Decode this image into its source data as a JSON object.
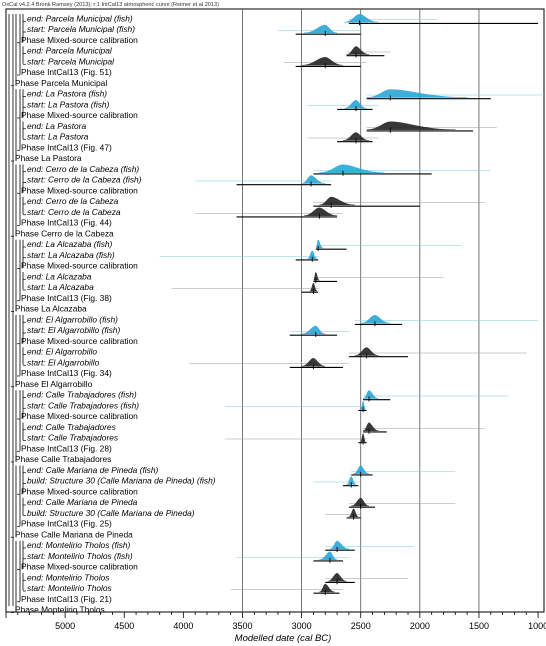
{
  "chart_data": {
    "type": "oxcal-multiplot",
    "header": "OxCal v4.2.4 Bronk Ramsey (2013); r:1 IntCal13 atmospheric curve (Reimer et al 2013)",
    "xlabel": "Modelled date (cal BC)",
    "xlim": [
      5500,
      950
    ],
    "xticks": [
      5000,
      4500,
      4000,
      3500,
      3000,
      2500,
      2000,
      1500,
      1000
    ],
    "grid_lines": [
      3500,
      3000,
      2500,
      2000,
      1500
    ],
    "colors": {
      "fish": "#2aa6d6",
      "terrestrial": "#222222",
      "frame": "#000000"
    },
    "rows": [
      {
        "label": "end: Parcela Municipal (fish)",
        "kind": "fish",
        "peak": 2510,
        "start": 2640,
        "end": 2350,
        "range": [
          2600,
          1000
        ],
        "thin": [
          2600,
          1850
        ]
      },
      {
        "label": "start: Parcela Municipal (fish)",
        "kind": "fish",
        "peak": 2800,
        "start": 2980,
        "end": 2700,
        "range": [
          3050,
          2500
        ],
        "thin": [
          3200,
          2500
        ]
      },
      {
        "label": "Phase Mixed-source calibration",
        "kind": "phase"
      },
      {
        "label": "end: Parcela Municipal",
        "kind": "terr",
        "peak": 2540,
        "start": 2620,
        "end": 2430,
        "range": [
          2620,
          2300
        ],
        "thin": [
          2620,
          2250
        ]
      },
      {
        "label": "start: Parcela Municipal",
        "kind": "terr",
        "peak": 2800,
        "start": 3000,
        "end": 2650,
        "range": [
          3050,
          2500
        ],
        "thin": [
          3150,
          2450
        ]
      },
      {
        "label": "Phase IntCal13 (Fig. 51)",
        "kind": "phase"
      },
      {
        "label": "Phase Parcela Municipal",
        "kind": "phase"
      },
      {
        "label": "end: La Pastora (fish)",
        "kind": "fish",
        "peak": 2250,
        "start": 2450,
        "end": 1600,
        "range": [
          2450,
          1400
        ],
        "thin": [
          2450,
          950
        ]
      },
      {
        "label": "start: La Pastora (fish)",
        "kind": "fish",
        "peak": 2540,
        "start": 2640,
        "end": 2450,
        "range": [
          2700,
          2400
        ],
        "thin": [
          2950,
          2350
        ]
      },
      {
        "label": "Phase Mixed-source calibration",
        "kind": "phase"
      },
      {
        "label": "end: La Pastora",
        "kind": "terr",
        "peak": 2250,
        "start": 2450,
        "end": 1700,
        "range": [
          2450,
          1550
        ],
        "thin": [
          2450,
          1350
        ]
      },
      {
        "label": "start: La Pastora",
        "kind": "terr",
        "peak": 2540,
        "start": 2650,
        "end": 2430,
        "range": [
          2700,
          2400
        ],
        "thin": [
          2950,
          2350
        ]
      },
      {
        "label": "Phase IntCal13 (Fig. 47)",
        "kind": "phase"
      },
      {
        "label": "Phase La Pastora",
        "kind": "phase"
      },
      {
        "label": "end: Cerro de la Cabeza (fish)",
        "kind": "fish",
        "peak": 2650,
        "start": 2850,
        "end": 2300,
        "range": [
          2900,
          1900
        ],
        "thin": [
          2900,
          1400
        ]
      },
      {
        "label": "start: Cerro de la Cabeza (fish)",
        "kind": "fish",
        "peak": 2920,
        "start": 3000,
        "end": 2800,
        "range": [
          3550,
          2750
        ],
        "thin": [
          3900,
          2750
        ]
      },
      {
        "label": "Phase Mixed-source calibration",
        "kind": "phase"
      },
      {
        "label": "end: Cerro de la Cabeza",
        "kind": "terr",
        "peak": 2750,
        "start": 2850,
        "end": 2550,
        "range": [
          2900,
          2000
        ],
        "thin": [
          2900,
          1450
        ]
      },
      {
        "label": "start: Cerro de la Cabeza",
        "kind": "terr",
        "peak": 2850,
        "start": 2980,
        "end": 2700,
        "range": [
          3550,
          2700
        ],
        "thin": [
          3900,
          2650
        ]
      },
      {
        "label": "Phase IntCal13 (Fig. 44)",
        "kind": "phase"
      },
      {
        "label": "Phase Cerro de la Cabeza",
        "kind": "phase"
      },
      {
        "label": "end: La Alcazaba (fish)",
        "kind": "fish",
        "peak": 2860,
        "start": 2880,
        "end": 2820,
        "range": [
          2880,
          2620
        ],
        "thin": [
          2880,
          1650
        ]
      },
      {
        "label": "start: La Alcazaba (fish)",
        "kind": "fish",
        "peak": 2910,
        "start": 2950,
        "end": 2870,
        "range": [
          3050,
          2860
        ],
        "thin": [
          4200,
          2850
        ]
      },
      {
        "label": "Phase Mixed-source calibration",
        "kind": "phase"
      },
      {
        "label": "end: La Alcazaba",
        "kind": "terr",
        "peak": 2880,
        "start": 2900,
        "end": 2850,
        "range": [
          2900,
          2700
        ],
        "thin": [
          2900,
          1800
        ]
      },
      {
        "label": "start: La Alcazaba",
        "kind": "terr",
        "peak": 2900,
        "start": 2930,
        "end": 2870,
        "range": [
          3000,
          2860
        ],
        "thin": [
          4100,
          2850
        ]
      },
      {
        "label": "Phase IntCal13 (Fig. 38)",
        "kind": "phase"
      },
      {
        "label": "Phase La Alcazaba",
        "kind": "phase"
      },
      {
        "label": "end: El Algarrobillo (fish)",
        "kind": "fish",
        "peak": 2380,
        "start": 2500,
        "end": 2250,
        "range": [
          2550,
          2150
        ],
        "thin": [
          2550,
          1000
        ]
      },
      {
        "label": "start: El Algarrobillo (fish)",
        "kind": "fish",
        "peak": 2880,
        "start": 3000,
        "end": 2800,
        "range": [
          3100,
          2700
        ],
        "thin": [
          3100,
          2600
        ]
      },
      {
        "label": "Phase Mixed-source calibration",
        "kind": "phase"
      },
      {
        "label": "end: El Algarrobillo",
        "kind": "terr",
        "peak": 2450,
        "start": 2550,
        "end": 2350,
        "range": [
          2600,
          2100
        ],
        "thin": [
          2600,
          1100
        ]
      },
      {
        "label": "start: El Algarrobillo",
        "kind": "terr",
        "peak": 2900,
        "start": 3000,
        "end": 2800,
        "range": [
          3100,
          2650
        ],
        "thin": [
          3950,
          2600
        ]
      },
      {
        "label": "Phase IntCal13 (Fig. 34)",
        "kind": "phase"
      },
      {
        "label": "Phase El Algarrobillo",
        "kind": "phase"
      },
      {
        "label": "end: Calle Trabajadores (fish)",
        "kind": "fish",
        "peak": 2430,
        "start": 2480,
        "end": 2350,
        "range": [
          2480,
          2250
        ],
        "thin": [
          2480,
          1250
        ]
      },
      {
        "label": "start: Calle Trabajadores (fish)",
        "kind": "fish",
        "peak": 2480,
        "start": 2500,
        "end": 2460,
        "range": [
          2520,
          2450
        ],
        "thin": [
          3650,
          2450
        ]
      },
      {
        "label": "Phase Mixed-source calibration",
        "kind": "phase"
      },
      {
        "label": "end: Calle Trabajadores",
        "kind": "terr",
        "peak": 2430,
        "start": 2480,
        "end": 2350,
        "range": [
          2480,
          2280
        ],
        "thin": [
          2480,
          1450
        ]
      },
      {
        "label": "start: Calle Trabajadores",
        "kind": "terr",
        "peak": 2480,
        "start": 2500,
        "end": 2460,
        "range": [
          2520,
          2450
        ],
        "thin": [
          3650,
          2450
        ]
      },
      {
        "label": "Phase IntCal13 (Fig. 28)",
        "kind": "phase"
      },
      {
        "label": "Phase Calle Trabajadores",
        "kind": "phase"
      },
      {
        "label": "end: Calle Mariana de Pineda (fish)",
        "kind": "fish",
        "peak": 2500,
        "start": 2560,
        "end": 2430,
        "range": [
          2580,
          2400
        ],
        "thin": [
          2580,
          1700
        ]
      },
      {
        "label": "build: Structure 30 (Calle Mariana de Pineda) (fish)",
        "kind": "fish",
        "peak": 2580,
        "start": 2620,
        "end": 2540,
        "range": [
          2650,
          2520
        ],
        "thin": [
          2900,
          2500
        ]
      },
      {
        "label": "Phase Mixed-source calibration",
        "kind": "phase"
      },
      {
        "label": "end: Calle Mariana de Pineda",
        "kind": "terr",
        "peak": 2500,
        "start": 2580,
        "end": 2430,
        "range": [
          2600,
          2380
        ],
        "thin": [
          2600,
          1700
        ]
      },
      {
        "label": "build: Structure 30 (Calle Mariana de Pineda)",
        "kind": "terr",
        "peak": 2560,
        "start": 2600,
        "end": 2520,
        "range": [
          2620,
          2500
        ],
        "thin": [
          2800,
          2500
        ]
      },
      {
        "label": "Phase IntCal13 (Fig. 25)",
        "kind": "phase"
      },
      {
        "label": "Phase Calle Mariana de Pineda",
        "kind": "phase"
      },
      {
        "label": "end: Montelirio Tholos (fish)",
        "kind": "fish",
        "peak": 2700,
        "start": 2760,
        "end": 2600,
        "range": [
          2800,
          2550
        ],
        "thin": [
          2800,
          2050
        ]
      },
      {
        "label": "start: Montelirio Tholos (fish)",
        "kind": "fish",
        "peak": 2760,
        "start": 2850,
        "end": 2700,
        "range": [
          2900,
          2650
        ],
        "thin": [
          3550,
          2600
        ]
      },
      {
        "label": "Phase Mixed-source calibration",
        "kind": "phase"
      },
      {
        "label": "end: Montelirio Tholos",
        "kind": "terr",
        "peak": 2700,
        "start": 2780,
        "end": 2620,
        "range": [
          2800,
          2550
        ],
        "thin": [
          2800,
          2100
        ]
      },
      {
        "label": "start: Montelirio Tholos",
        "kind": "terr",
        "peak": 2800,
        "start": 2850,
        "end": 2720,
        "range": [
          2900,
          2680
        ],
        "thin": [
          3600,
          2650
        ]
      },
      {
        "label": "Phase IntCal13 (Fig. 21)",
        "kind": "phase"
      },
      {
        "label": "Phase Montelirio Tholos",
        "kind": "phase"
      }
    ]
  }
}
